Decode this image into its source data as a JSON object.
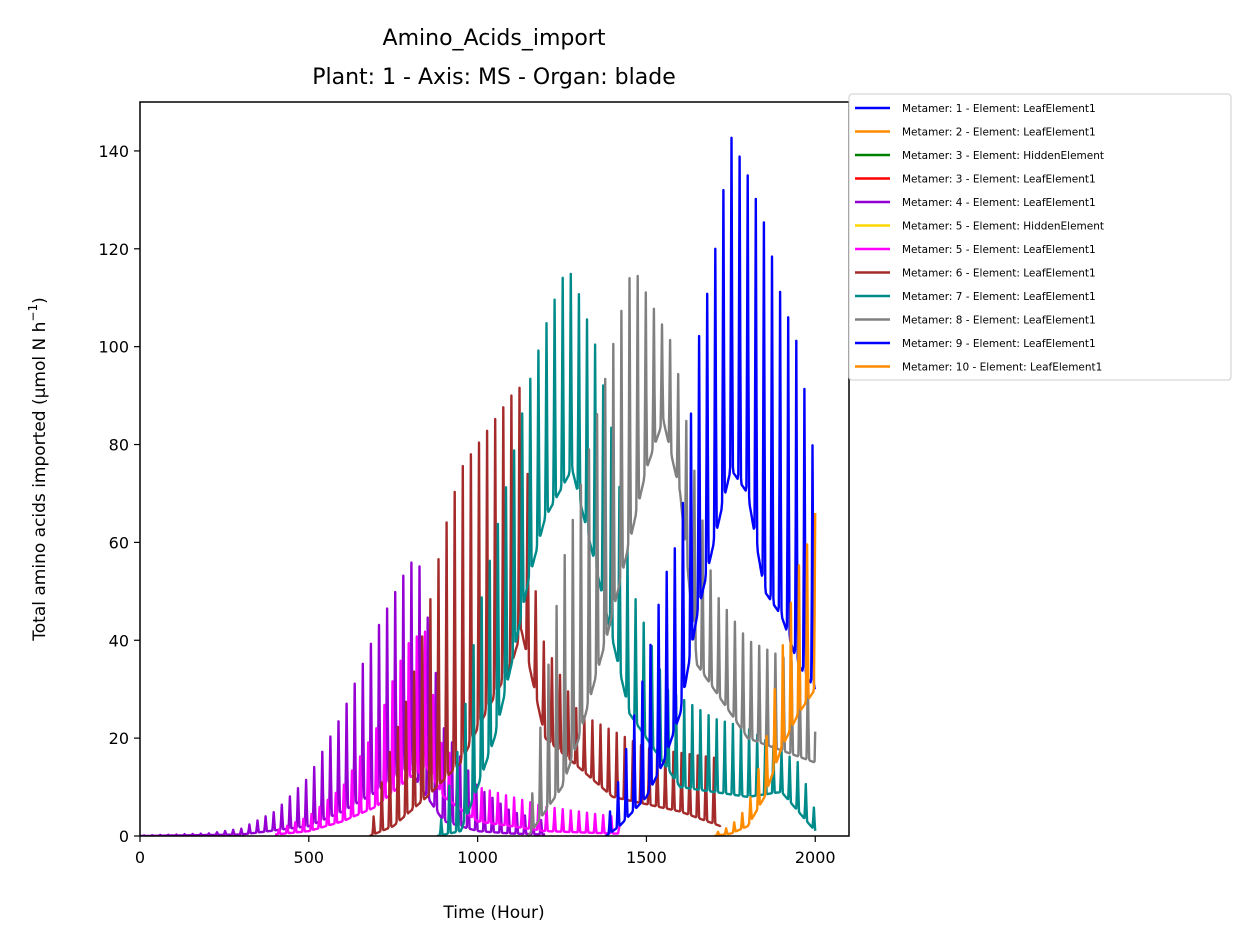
{
  "chart_data": {
    "type": "line",
    "title": "Amino_Acids_import",
    "subtitle": "Plant: 1 - Axis: MS - Organ: blade",
    "xlabel": "Time (Hour)",
    "ylabel": "Total amino acids imported (µmol N h",
    "ylabel_sup": "−1",
    "ylabel_end": ")",
    "xlim": [
      0,
      2100
    ],
    "ylim": [
      0,
      150
    ],
    "xticks": [
      0,
      500,
      1000,
      1500,
      2000
    ],
    "yticks": [
      0,
      20,
      40,
      60,
      80,
      100,
      120,
      140
    ],
    "grid": false,
    "legend_position": "outside-top-right",
    "series": [
      {
        "name": "Metamer: 1 - Element: LeafElement1",
        "color": "#0000ff",
        "peaks": [
          [
            0,
            0
          ]
        ],
        "troughs": [
          [
            0,
            0
          ]
        ]
      },
      {
        "name": "Metamer: 2 - Element: LeafElement1",
        "color": "#ff8c00",
        "peaks": [
          [
            0,
            0
          ]
        ],
        "troughs": [
          [
            0,
            0
          ]
        ]
      },
      {
        "name": "Metamer: 3 - Element: HiddenElement",
        "color": "#008000",
        "peaks": [
          [
            0,
            0
          ]
        ],
        "troughs": [
          [
            0,
            0
          ]
        ]
      },
      {
        "name": "Metamer: 3 - Element: LeafElement1",
        "color": "#ff0000",
        "peaks": [
          [
            0,
            0
          ]
        ],
        "troughs": [
          [
            0,
            0
          ]
        ]
      },
      {
        "name": "Metamer: 4 - Element: LeafElement1",
        "color": "#9400d3",
        "peaks": [
          [
            0,
            0.1
          ],
          [
            200,
            0.5
          ],
          [
            300,
            1.5
          ],
          [
            400,
            5
          ],
          [
            500,
            12
          ],
          [
            600,
            25
          ],
          [
            700,
            42
          ],
          [
            800,
            56
          ],
          [
            830,
            55
          ],
          [
            900,
            22
          ],
          [
            1000,
            10
          ],
          [
            1100,
            5
          ],
          [
            1200,
            3
          ]
        ],
        "troughs": [
          [
            0,
            0
          ],
          [
            300,
            0.3
          ],
          [
            500,
            2
          ],
          [
            600,
            5
          ],
          [
            700,
            9
          ],
          [
            800,
            14
          ],
          [
            830,
            10
          ],
          [
            900,
            3
          ],
          [
            1000,
            1
          ],
          [
            1100,
            0.5
          ],
          [
            1200,
            0.3
          ]
        ]
      },
      {
        "name": "Metamer: 5 - Element: HiddenElement",
        "color": "#ffd700",
        "peaks": [
          [
            0,
            0
          ]
        ],
        "troughs": [
          [
            0,
            0
          ]
        ]
      },
      {
        "name": "Metamer: 5 - Element: LeafElement1",
        "color": "#ff00ff",
        "peaks": [
          [
            400,
            1
          ],
          [
            500,
            4
          ],
          [
            600,
            10
          ],
          [
            700,
            22
          ],
          [
            760,
            34
          ],
          [
            800,
            40
          ],
          [
            850,
            42
          ],
          [
            880,
            20
          ],
          [
            1000,
            10
          ],
          [
            1200,
            6
          ],
          [
            1400,
            4
          ],
          [
            1420,
            2
          ]
        ],
        "troughs": [
          [
            400,
            0.3
          ],
          [
            500,
            1
          ],
          [
            600,
            3
          ],
          [
            700,
            6
          ],
          [
            800,
            12
          ],
          [
            850,
            14
          ],
          [
            900,
            8
          ],
          [
            1000,
            3
          ],
          [
            1200,
            1
          ],
          [
            1400,
            0.5
          ]
        ]
      },
      {
        "name": "Metamer: 6 - Element: LeafElement1",
        "color": "#a52a2a",
        "peaks": [
          [
            680,
            0.5
          ],
          [
            730,
            15
          ],
          [
            800,
            30
          ],
          [
            850,
            45
          ],
          [
            900,
            62
          ],
          [
            950,
            75
          ],
          [
            1000,
            80
          ],
          [
            1050,
            85
          ],
          [
            1100,
            90
          ],
          [
            1130,
            92
          ],
          [
            1180,
            42
          ],
          [
            1300,
            25
          ],
          [
            1500,
            18
          ],
          [
            1700,
            16
          ],
          [
            1720,
            12
          ]
        ],
        "troughs": [
          [
            680,
            0
          ],
          [
            750,
            2
          ],
          [
            850,
            8
          ],
          [
            950,
            15
          ],
          [
            1000,
            22
          ],
          [
            1100,
            35
          ],
          [
            1130,
            42
          ],
          [
            1200,
            20
          ],
          [
            1400,
            8
          ],
          [
            1600,
            5
          ],
          [
            1720,
            2
          ]
        ]
      },
      {
        "name": "Metamer: 7 - Element: LeafElement1",
        "color": "#008b8b",
        "peaks": [
          [
            880,
            0
          ],
          [
            950,
            20
          ],
          [
            1000,
            45
          ],
          [
            1080,
            70
          ],
          [
            1150,
            92
          ],
          [
            1200,
            104
          ],
          [
            1250,
            114
          ],
          [
            1280,
            115
          ],
          [
            1350,
            100
          ],
          [
            1400,
            82
          ],
          [
            1460,
            50
          ],
          [
            1560,
            30
          ],
          [
            1700,
            24
          ],
          [
            1800,
            22
          ],
          [
            1950,
            15
          ],
          [
            2000,
            5
          ]
        ],
        "troughs": [
          [
            880,
            0
          ],
          [
            950,
            1
          ],
          [
            1000,
            10
          ],
          [
            1050,
            20
          ],
          [
            1100,
            35
          ],
          [
            1150,
            52
          ],
          [
            1200,
            65
          ],
          [
            1280,
            75
          ],
          [
            1350,
            55
          ],
          [
            1450,
            25
          ],
          [
            1600,
            10
          ],
          [
            1800,
            8
          ],
          [
            1900,
            9
          ],
          [
            2000,
            1
          ]
        ]
      },
      {
        "name": "Metamer: 8 - Element: LeafElement1",
        "color": "#808080",
        "peaks": [
          [
            1150,
            2
          ],
          [
            1200,
            30
          ],
          [
            1250,
            55
          ],
          [
            1300,
            70
          ],
          [
            1350,
            85
          ],
          [
            1400,
            100
          ],
          [
            1450,
            114
          ],
          [
            1470,
            115
          ],
          [
            1520,
            108
          ],
          [
            1580,
            100
          ],
          [
            1620,
            84
          ],
          [
            1700,
            50
          ],
          [
            1800,
            40
          ],
          [
            1950,
            35
          ],
          [
            2000,
            30
          ]
        ],
        "troughs": [
          [
            1150,
            0
          ],
          [
            1200,
            5
          ],
          [
            1250,
            10
          ],
          [
            1300,
            20
          ],
          [
            1380,
            40
          ],
          [
            1450,
            60
          ],
          [
            1500,
            75
          ],
          [
            1550,
            85
          ],
          [
            1600,
            70
          ],
          [
            1650,
            35
          ],
          [
            1800,
            20
          ],
          [
            2000,
            15
          ]
        ]
      },
      {
        "name": "Metamer: 9 - Element: LeafElement1",
        "color": "#0000ff",
        "peaks": [
          [
            1380,
            2
          ],
          [
            1420,
            12
          ],
          [
            1500,
            35
          ],
          [
            1550,
            52
          ],
          [
            1600,
            62
          ],
          [
            1650,
            100
          ],
          [
            1700,
            118
          ],
          [
            1750,
            143
          ],
          [
            1800,
            135
          ],
          [
            1850,
            125
          ],
          [
            1900,
            110
          ],
          [
            1950,
            100
          ],
          [
            2000,
            76
          ]
        ],
        "troughs": [
          [
            1380,
            0
          ],
          [
            1420,
            2
          ],
          [
            1500,
            8
          ],
          [
            1550,
            15
          ],
          [
            1600,
            25
          ],
          [
            1650,
            45
          ],
          [
            1700,
            60
          ],
          [
            1750,
            75
          ],
          [
            1800,
            70
          ],
          [
            1850,
            50
          ],
          [
            1900,
            45
          ],
          [
            1950,
            35
          ],
          [
            2000,
            30
          ]
        ]
      },
      {
        "name": "Metamer: 10 - Element: LeafElement1",
        "color": "#ff8c00",
        "peaks": [
          [
            1700,
            0.5
          ],
          [
            1750,
            2
          ],
          [
            1800,
            6
          ],
          [
            1850,
            18
          ],
          [
            1880,
            30
          ],
          [
            1920,
            45
          ],
          [
            1950,
            55
          ],
          [
            1970,
            58
          ],
          [
            2000,
            66
          ]
        ],
        "troughs": [
          [
            1700,
            0
          ],
          [
            1750,
            0.5
          ],
          [
            1800,
            2
          ],
          [
            1850,
            8
          ],
          [
            1900,
            18
          ],
          [
            1950,
            25
          ],
          [
            2000,
            30
          ]
        ]
      }
    ]
  }
}
